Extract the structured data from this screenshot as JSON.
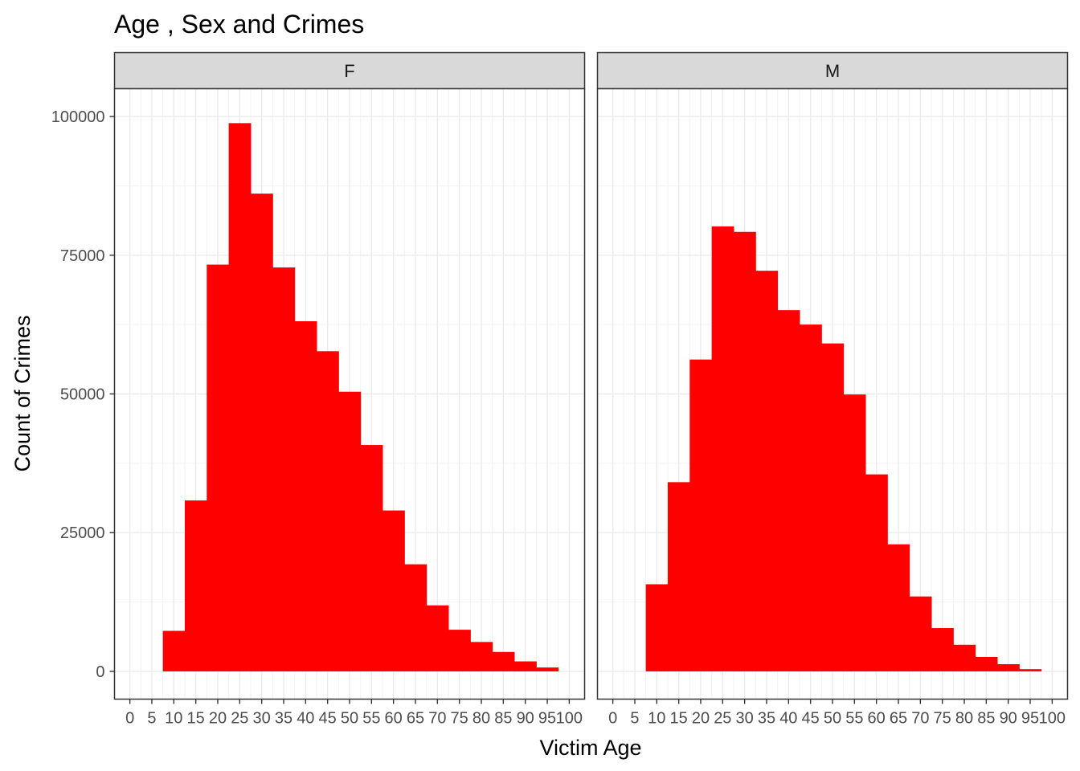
{
  "chart_data": {
    "type": "bar",
    "title": "Age , Sex and Crimes",
    "xlabel": "Victim Age",
    "ylabel": "Count of Crimes",
    "xlim": [
      -3.5,
      103.5
    ],
    "ylim": [
      -5000,
      105000
    ],
    "x_ticks": [
      0,
      5,
      10,
      15,
      20,
      25,
      30,
      35,
      40,
      45,
      50,
      55,
      60,
      65,
      70,
      75,
      80,
      85,
      90,
      95,
      100
    ],
    "x_tick_labels": [
      "0",
      "5",
      "10",
      "15",
      "20",
      "25",
      "30",
      "35",
      "40",
      "45",
      "50",
      "55",
      "60",
      "65",
      "70",
      "75",
      "80",
      "85",
      "90",
      "95",
      "100"
    ],
    "y_ticks": [
      0,
      25000,
      50000,
      75000,
      100000
    ],
    "y_tick_labels": [
      "0",
      "25000",
      "50000",
      "75000",
      "100000"
    ],
    "bin_width": 5,
    "bin_starts": [
      7.5,
      12.5,
      17.5,
      22.5,
      27.5,
      32.5,
      37.5,
      42.5,
      47.5,
      52.5,
      57.5,
      62.5,
      67.5,
      72.5,
      77.5,
      82.5,
      87.5,
      92.5
    ],
    "bar_color": "#ff0000",
    "facets": [
      {
        "label": "F",
        "values": [
          7300,
          30800,
          73300,
          98800,
          86100,
          72800,
          63100,
          57700,
          50400,
          40800,
          29000,
          19300,
          11900,
          7500,
          5300,
          3500,
          1800,
          700
        ]
      },
      {
        "label": "M",
        "values": [
          15700,
          34100,
          56200,
          80200,
          79200,
          72200,
          65100,
          62500,
          59100,
          49900,
          35500,
          22900,
          13500,
          7800,
          4800,
          2600,
          1300,
          400
        ]
      }
    ],
    "grid": true,
    "legend": "none"
  }
}
